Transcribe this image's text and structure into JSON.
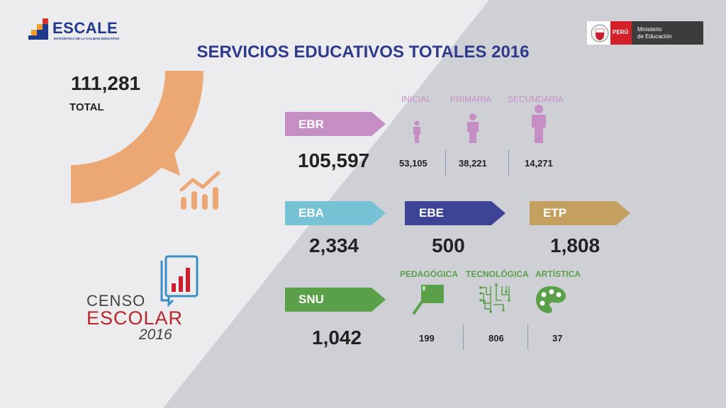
{
  "header": {
    "logo_name": "ESCALE",
    "logo_tagline": "ESTADÍSTICA DE LA CALIDAD EDUCATIVA",
    "ministry_country": "PERÚ",
    "ministry_line1": "Ministerio",
    "ministry_line2": "de Educación"
  },
  "title": "SERVICIOS EDUCATIVOS TOTALES 2016",
  "total": {
    "value": "111,281",
    "label": "TOTAL"
  },
  "ebr": {
    "label": "EBR",
    "value": "105,597",
    "color": "#c58fc6",
    "levels": [
      {
        "label": "INICIAL",
        "value": "53,105"
      },
      {
        "label": "PRIMARIA",
        "value": "38,221"
      },
      {
        "label": "SECUNDARIA",
        "value": "14,271"
      }
    ]
  },
  "eba": {
    "label": "EBA",
    "value": "2,334",
    "color": "#78c2d6"
  },
  "ebe": {
    "label": "EBE",
    "value": "500",
    "color": "#3d4496"
  },
  "etp": {
    "label": "ETP",
    "value": "1,808",
    "color": "#c4a060"
  },
  "snu": {
    "label": "SNU",
    "value": "1,042",
    "color": "#5aa048",
    "types": [
      {
        "label": "PEDAGÓGICA",
        "value": "199"
      },
      {
        "label": "TECNOLÓGICA",
        "value": "806"
      },
      {
        "label": "ARTÍSTICA",
        "value": "37"
      }
    ]
  },
  "censo": {
    "line1": "CENSO",
    "line2": "ESCOLAR",
    "year": "2016"
  },
  "icons": [
    "person-small-icon",
    "person-medium-icon",
    "person-large-icon",
    "growth-chart-icon",
    "chalkboard-icon",
    "circuit-icon",
    "palette-icon",
    "book-chart-icon",
    "peru-shield-icon"
  ]
}
